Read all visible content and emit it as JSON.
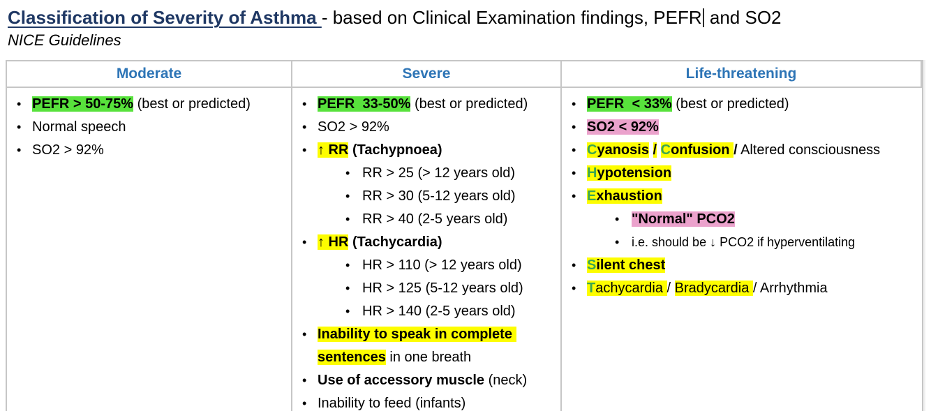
{
  "title": {
    "heading": "Classification of Severity of Asthma ",
    "rest_before_caret": "- based on Clinical Examination findings, PEFR",
    "rest_after_caret": " and SO2"
  },
  "subtitle": "NICE Guidelines",
  "colors": {
    "heading_navy": "#1f3864",
    "header_blue": "#2e75b6",
    "highlight_green": "#58e23c",
    "highlight_yellow": "#fdfd00",
    "highlight_pink": "#eba2cc",
    "mnemonic_letter_green": "#3ba652",
    "table_border": "#c6c6c6"
  },
  "table": {
    "headers": [
      "Moderate",
      "Severe",
      "Life-threatening"
    ],
    "columns": [
      {
        "name": "moderate",
        "items": [
          {
            "level": 1,
            "runs": [
              {
                "t": "PEFR > 50-75%",
                "b": true,
                "hl": "green"
              },
              {
                "t": " (best or predicted)"
              }
            ]
          },
          {
            "level": 1,
            "runs": [
              {
                "t": "Normal speech"
              }
            ]
          },
          {
            "level": 1,
            "runs": [
              {
                "t": "SO2 > 92%"
              }
            ]
          }
        ]
      },
      {
        "name": "severe",
        "items": [
          {
            "level": 1,
            "runs": [
              {
                "t": "PEFR  33-50%",
                "b": true,
                "hl": "green"
              },
              {
                "t": " (best or predicted)"
              }
            ]
          },
          {
            "level": 1,
            "runs": [
              {
                "t": "SO2 > 92%"
              }
            ]
          },
          {
            "level": 1,
            "runs": [
              {
                "t": "↑ RR",
                "b": true,
                "hl": "yellow"
              },
              {
                "t": " "
              },
              {
                "t": "(Tachypnoea)",
                "b": true
              }
            ]
          },
          {
            "level": 2,
            "runs": [
              {
                "t": "RR > 25 (> 12 years old)"
              }
            ]
          },
          {
            "level": 2,
            "runs": [
              {
                "t": "RR > 30 (5-12 years old)"
              }
            ]
          },
          {
            "level": 2,
            "runs": [
              {
                "t": "RR > 40 (2-5 years old)"
              }
            ]
          },
          {
            "level": 1,
            "runs": [
              {
                "t": "↑ HR",
                "b": true,
                "hl": "yellow"
              },
              {
                "t": " "
              },
              {
                "t": "(Tachycardia)",
                "b": true
              }
            ]
          },
          {
            "level": 2,
            "runs": [
              {
                "t": "HR > 110 (> 12 years old)"
              }
            ]
          },
          {
            "level": 2,
            "runs": [
              {
                "t": "HR > 125 (5-12 years old)"
              }
            ]
          },
          {
            "level": 2,
            "runs": [
              {
                "t": "HR > 140 (2-5 years old)"
              }
            ]
          },
          {
            "level": 1,
            "runs": [
              {
                "t": "Inability to speak in complete sentences",
                "b": true,
                "hl": "yellow"
              },
              {
                "t": " in one breath"
              }
            ]
          },
          {
            "level": 1,
            "runs": [
              {
                "t": "Use of accessory muscle",
                "b": true
              },
              {
                "t": " (neck)"
              }
            ]
          },
          {
            "level": 1,
            "runs": [
              {
                "t": "Inability to feed (infants)"
              }
            ]
          }
        ]
      },
      {
        "name": "life-threatening",
        "items": [
          {
            "level": 1,
            "runs": [
              {
                "t": "PEFR  < 33%",
                "b": true,
                "hl": "green"
              },
              {
                "t": " (best or predicted)"
              }
            ]
          },
          {
            "level": 1,
            "runs": [
              {
                "t": "SO2 < 92%",
                "b": true,
                "hl": "pink"
              }
            ]
          },
          {
            "level": 1,
            "runs": [
              {
                "t": "C",
                "b": true,
                "hl": "yellow",
                "gl": true
              },
              {
                "t": "yanosis",
                "b": true,
                "hl": "yellow"
              },
              {
                "t": " "
              },
              {
                "t": "/",
                "b": true,
                "hl": "yellow"
              },
              {
                "t": " "
              },
              {
                "t": "C",
                "b": true,
                "hl": "yellow",
                "gl": true
              },
              {
                "t": "onfusion ",
                "b": true,
                "hl": "yellow"
              },
              {
                "t": "/",
                "b": true
              },
              {
                "t": " Altered consciousness"
              }
            ]
          },
          {
            "level": 1,
            "runs": [
              {
                "t": "H",
                "b": true,
                "hl": "yellow",
                "gl": true
              },
              {
                "t": "ypotension",
                "b": true,
                "hl": "yellow"
              }
            ]
          },
          {
            "level": 1,
            "runs": [
              {
                "t": "E",
                "b": true,
                "hl": "yellow",
                "gl": true
              },
              {
                "t": "xhaustion",
                "b": true,
                "hl": "yellow"
              }
            ]
          },
          {
            "level": 2,
            "runs": [
              {
                "t": "\"Normal\" PCO2",
                "b": true,
                "hl": "pink"
              }
            ]
          },
          {
            "level": 2,
            "small": true,
            "runs": [
              {
                "t": "i.e. should be ↓ PCO2 if hyperventilating"
              }
            ]
          },
          {
            "level": 1,
            "runs": [
              {
                "t": "S",
                "b": true,
                "hl": "yellow",
                "gl": true
              },
              {
                "t": "ilent chest",
                "b": true,
                "hl": "yellow"
              }
            ]
          },
          {
            "level": 1,
            "runs": [
              {
                "t": "T",
                "b": true,
                "hl": "yellow",
                "gl": true
              },
              {
                "t": "achycardia ",
                "hl": "yellow"
              },
              {
                "t": "/ "
              },
              {
                "t": "Bradycardia ",
                "hl": "yellow"
              },
              {
                "t": "/ Arrhythmia"
              }
            ]
          }
        ]
      }
    ]
  }
}
